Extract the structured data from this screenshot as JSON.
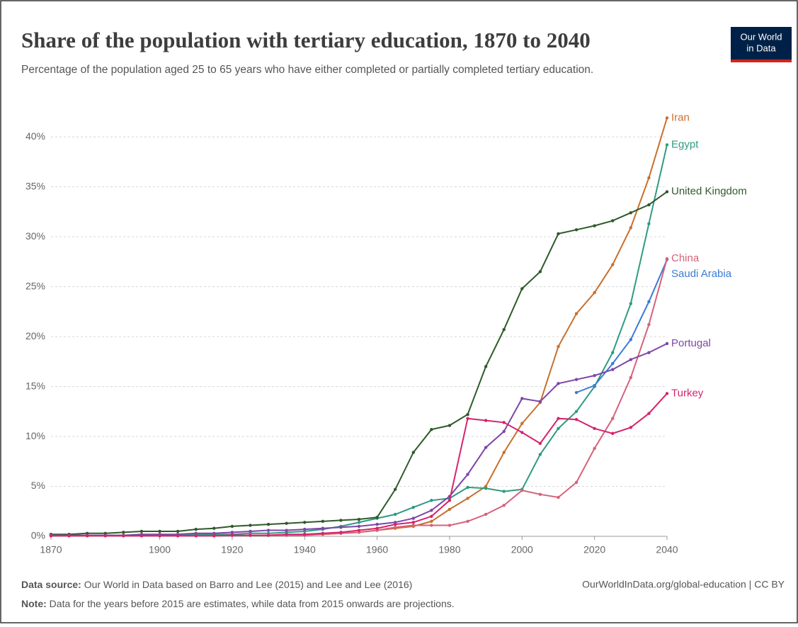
{
  "chart_data": {
    "type": "line",
    "title": "Share of the population with tertiary education, 1870 to 2040",
    "subtitle": "Percentage of the population aged 25 to 65 years who have either completed or partially completed tertiary education.",
    "logo": [
      "Our World",
      "in Data"
    ],
    "source_label": "Data source:",
    "source": "Our World in Data based on Barro and Lee (2015) and Lee and Lee (2016)",
    "url": "OurWorldInData.org/global-education | CC BY",
    "note_label": "Note:",
    "note": "Data for the years before 2015 are estimates, while data from 2015 onwards are projections.",
    "x": [
      1870,
      1875,
      1880,
      1885,
      1890,
      1895,
      1900,
      1905,
      1910,
      1915,
      1920,
      1925,
      1930,
      1935,
      1940,
      1945,
      1950,
      1955,
      1960,
      1965,
      1970,
      1975,
      1980,
      1985,
      1990,
      1995,
      2000,
      2005,
      2010,
      2015,
      2020,
      2025,
      2030,
      2035,
      2040
    ],
    "xlim": [
      1870,
      2040
    ],
    "xticks": [
      1870,
      1900,
      1920,
      1940,
      1960,
      1980,
      2000,
      2020,
      2040
    ],
    "ylim": [
      0,
      42
    ],
    "yticks": [
      {
        "value": 0,
        "label": "0%"
      },
      {
        "value": 5,
        "label": "5%"
      },
      {
        "value": 10,
        "label": "10%"
      },
      {
        "value": 15,
        "label": "15%"
      },
      {
        "value": 20,
        "label": "20%"
      },
      {
        "value": 25,
        "label": "25%"
      },
      {
        "value": 30,
        "label": "30%"
      },
      {
        "value": 35,
        "label": "35%"
      },
      {
        "value": 40,
        "label": "40%"
      }
    ],
    "grid": true,
    "series": [
      {
        "name": "Iran",
        "color": "#c8702e",
        "values": [
          0.05,
          0.05,
          0.05,
          0.05,
          0.05,
          0.05,
          0.05,
          0.05,
          0.05,
          0.05,
          0.1,
          0.1,
          0.1,
          0.1,
          0.2,
          0.2,
          0.3,
          0.4,
          0.6,
          0.8,
          1.0,
          1.5,
          2.7,
          3.8,
          5.0,
          8.4,
          11.3,
          13.4,
          19.0,
          22.3,
          24.4,
          27.2,
          30.9,
          35.9,
          41.9
        ]
      },
      {
        "name": "Egypt",
        "color": "#2e9b80",
        "values": [
          0.1,
          0.1,
          0.1,
          0.1,
          0.1,
          0.1,
          0.1,
          0.1,
          0.2,
          0.2,
          0.2,
          0.3,
          0.3,
          0.4,
          0.5,
          0.7,
          1.0,
          1.4,
          1.8,
          2.2,
          2.9,
          3.6,
          3.8,
          4.9,
          4.8,
          4.5,
          4.7,
          8.2,
          10.8,
          12.5,
          15.0,
          18.4,
          23.3,
          31.3,
          39.2
        ]
      },
      {
        "name": "United Kingdom",
        "color": "#2f5a2a",
        "values": [
          0.2,
          0.2,
          0.3,
          0.3,
          0.4,
          0.5,
          0.5,
          0.5,
          0.7,
          0.8,
          1.0,
          1.1,
          1.2,
          1.3,
          1.4,
          1.5,
          1.6,
          1.7,
          1.9,
          4.7,
          8.4,
          10.7,
          11.1,
          12.2,
          17.0,
          20.7,
          24.8,
          26.5,
          30.3,
          30.7,
          31.1,
          31.6,
          32.4,
          33.2,
          34.5
        ]
      },
      {
        "name": "Saudi Arabia",
        "color": "#3a7bd5",
        "values": [
          null,
          null,
          null,
          null,
          null,
          null,
          null,
          null,
          null,
          null,
          null,
          null,
          null,
          null,
          null,
          null,
          null,
          null,
          null,
          null,
          null,
          null,
          null,
          null,
          null,
          null,
          null,
          null,
          null,
          14.4,
          15.1,
          17.3,
          19.7,
          23.5,
          27.7
        ]
      },
      {
        "name": "China",
        "color": "#d6627a",
        "values": [
          0.05,
          0.05,
          0.05,
          0.05,
          0.05,
          0.05,
          0.05,
          0.05,
          0.05,
          0.05,
          0.1,
          0.1,
          0.1,
          0.1,
          0.1,
          0.2,
          0.3,
          0.4,
          0.6,
          0.9,
          1.1,
          1.1,
          1.1,
          1.5,
          2.2,
          3.1,
          4.6,
          4.2,
          3.9,
          5.4,
          8.8,
          11.8,
          15.9,
          21.2,
          27.8
        ]
      },
      {
        "name": "Portugal",
        "color": "#7f45a8",
        "values": [
          0.1,
          0.1,
          0.1,
          0.1,
          0.1,
          0.2,
          0.2,
          0.2,
          0.3,
          0.3,
          0.4,
          0.5,
          0.6,
          0.6,
          0.7,
          0.8,
          0.9,
          1.0,
          1.2,
          1.4,
          1.8,
          2.6,
          4.0,
          6.2,
          8.9,
          10.5,
          13.8,
          13.5,
          15.3,
          15.7,
          16.1,
          16.7,
          17.7,
          18.4,
          19.3
        ]
      },
      {
        "name": "Turkey",
        "color": "#d4246c",
        "values": [
          0.05,
          0.05,
          0.05,
          0.05,
          0.05,
          0.05,
          0.05,
          0.05,
          0.05,
          0.05,
          0.1,
          0.1,
          0.1,
          0.2,
          0.2,
          0.3,
          0.4,
          0.6,
          0.8,
          1.2,
          1.4,
          2.0,
          3.6,
          11.8,
          11.6,
          11.4,
          10.4,
          9.3,
          11.8,
          11.7,
          10.8,
          10.3,
          10.9,
          12.3,
          14.3
        ]
      }
    ]
  }
}
